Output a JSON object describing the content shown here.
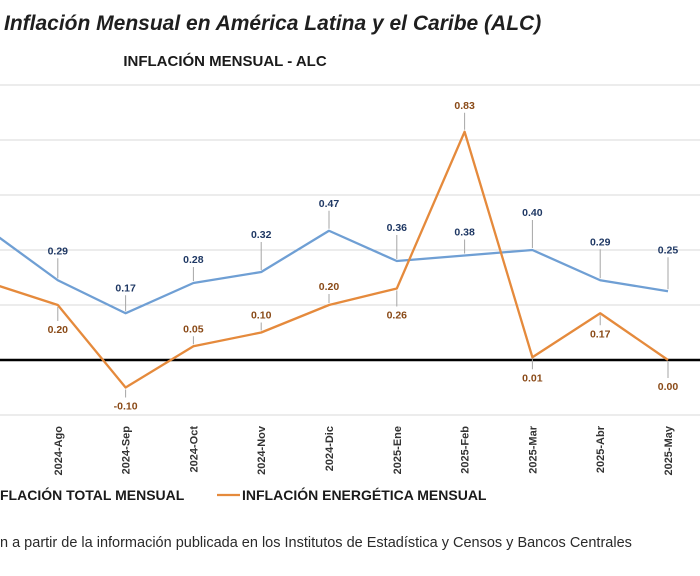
{
  "page_title": "Inflación Mensual en América Latina y el Caribe (ALC)",
  "source_note": "n a partir de la información publicada en los Institutos de Estadística y Censos y Bancos Centrales",
  "colors": {
    "total": "#6f9fd4",
    "energy": "#e58a3c",
    "zero_line": "#000000",
    "grid": "#d9d9d9"
  },
  "chart_data": {
    "type": "line",
    "title": "INFLACIÓN MENSUAL - ALC",
    "xlabel": "",
    "ylabel": "",
    "ylim": [
      -0.2,
      1.0
    ],
    "grid": true,
    "legend": "bottom",
    "categories": [
      "",
      "2024-Ago",
      "2024-Sep",
      "2024-Oct",
      "2024-Nov",
      "2024-Dic",
      "2025-Ene",
      "2025-Feb",
      "2025-Mar",
      "2025-Abr",
      "2025-May"
    ],
    "series": [
      {
        "name": "INFLACIÓN TOTAL MENSUAL",
        "legend_label": "FLACIÓN TOTAL MENSUAL",
        "color": "#6f9fd4",
        "label_color": "#1f3864",
        "values": [
          0.47,
          0.29,
          0.17,
          0.28,
          0.32,
          0.47,
          0.36,
          0.38,
          0.4,
          0.29,
          0.25
        ],
        "labels": [
          "",
          "0.29",
          "0.17",
          "0.28",
          "0.32",
          "0.47",
          "0.36",
          "0.38",
          "0.40",
          "0.29",
          "0.25"
        ]
      },
      {
        "name": "INFLACIÓN ENERGÉTICA MENSUAL",
        "legend_label": "INFLACIÓN ENERGÉTICA MENSUAL",
        "color": "#e58a3c",
        "label_color": "#8a4a17",
        "values": [
          0.28,
          0.2,
          -0.1,
          0.05,
          0.1,
          0.2,
          0.26,
          0.83,
          0.01,
          0.17,
          0.0
        ],
        "labels": [
          "",
          "0.20",
          "-0.10",
          "0.05",
          "0.10",
          "0.20",
          "0.26",
          "0.83",
          "0.01",
          "0.17",
          "0.00"
        ]
      }
    ]
  }
}
